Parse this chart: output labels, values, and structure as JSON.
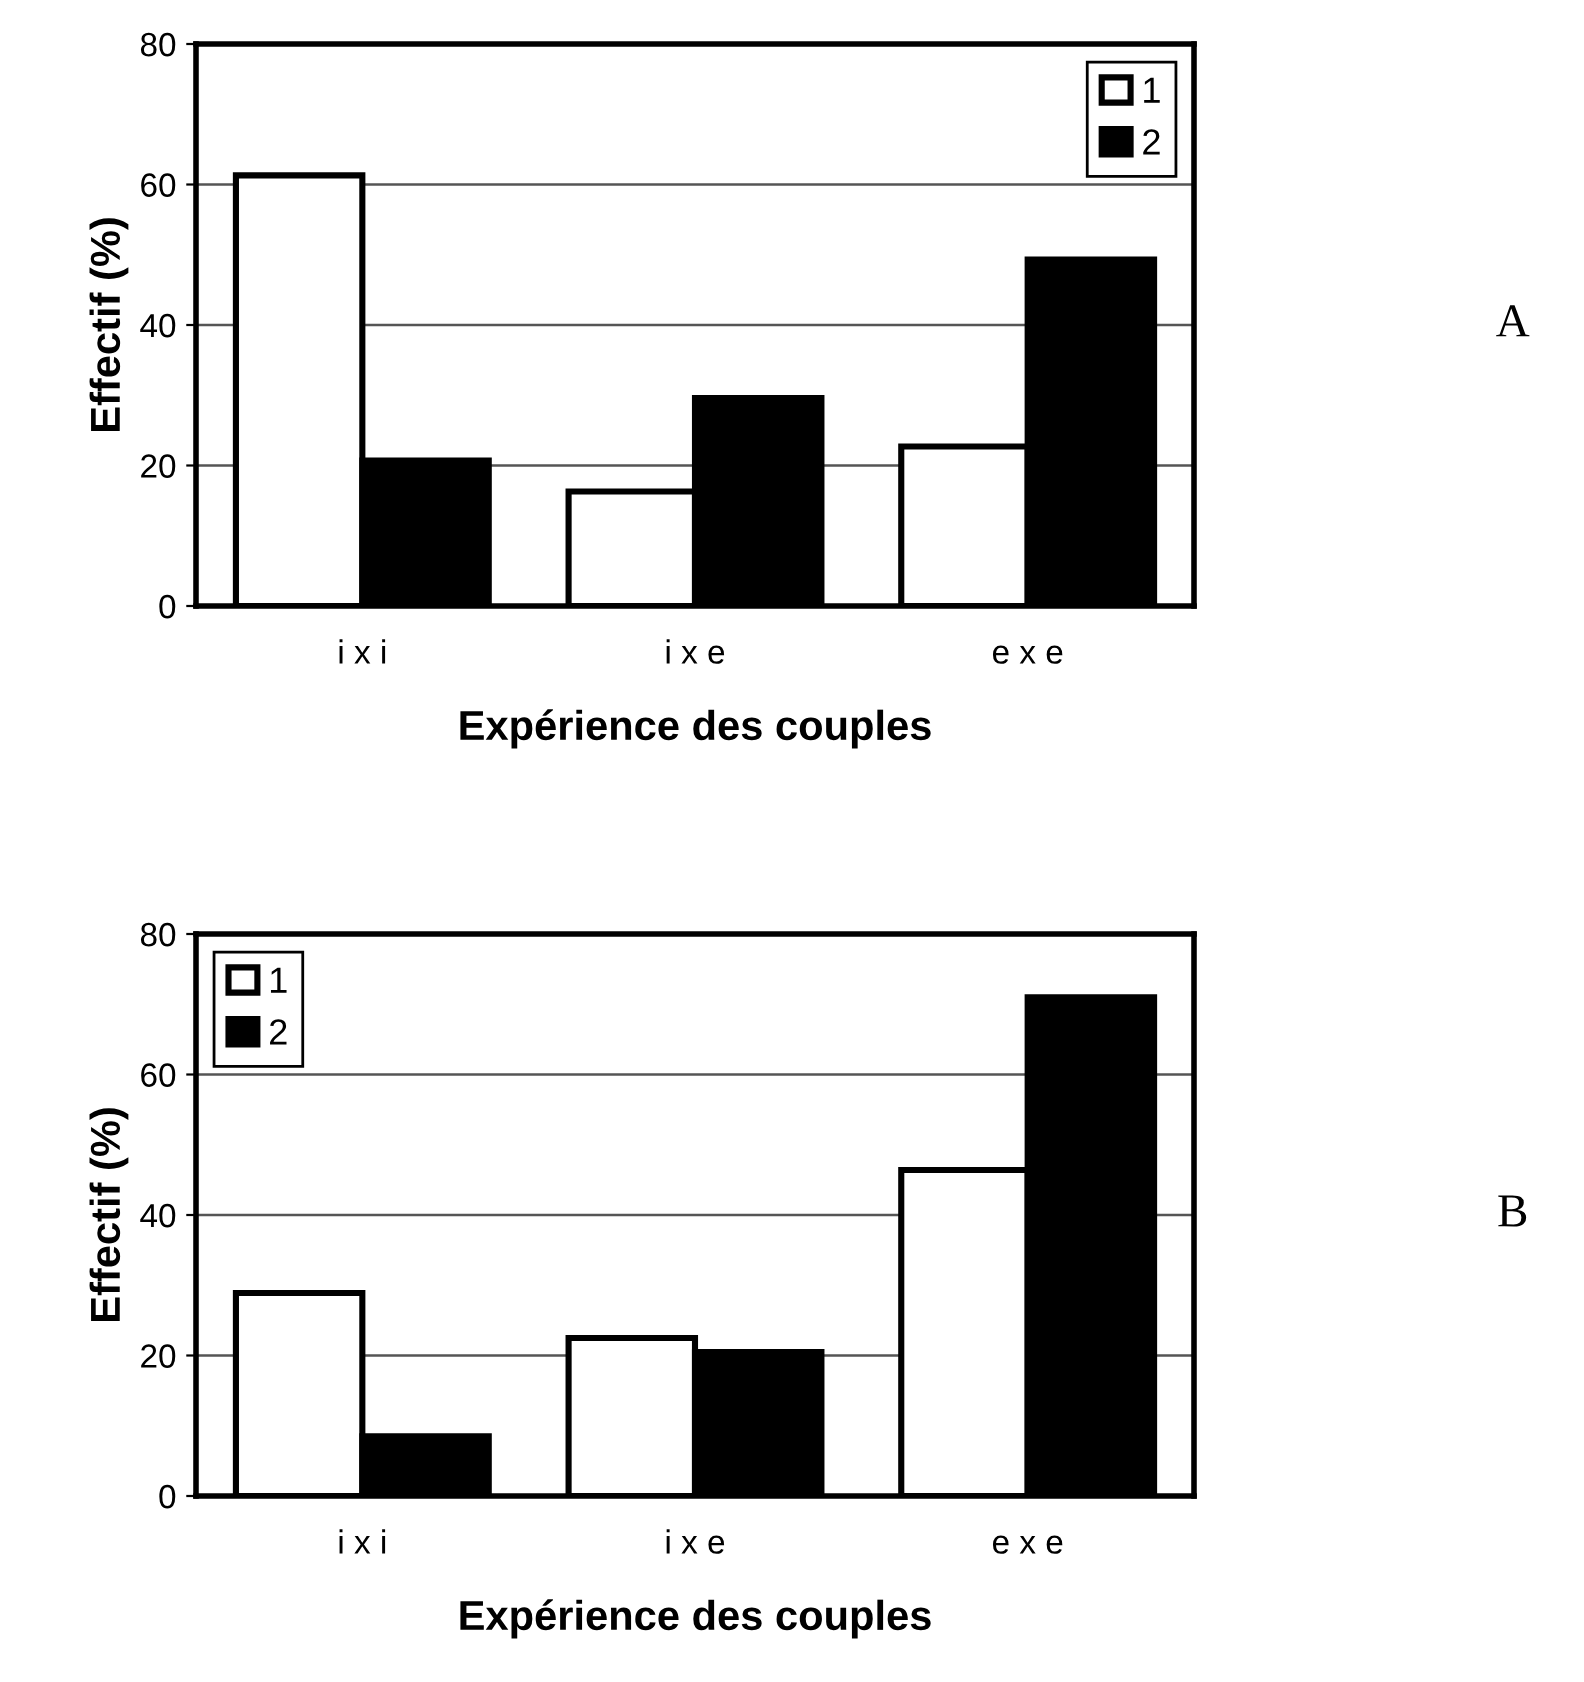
{
  "chart_data": [
    {
      "type": "bar",
      "categories": [
        "i x i",
        "i x e",
        "e x e"
      ],
      "xlabel": "Expérience des couples",
      "ylabel": "Effectif (%)",
      "ylim": [
        0,
        80
      ],
      "yticks": [
        0,
        20,
        40,
        60,
        80
      ],
      "grid": "y",
      "legend": "top right",
      "annotations": [
        "A"
      ],
      "series": [
        {
          "name": "1",
          "color": "#ffffff",
          "values": [
            61.3,
            16.3,
            22.7
          ]
        },
        {
          "name": "2",
          "color": "#000000",
          "values": [
            20.7,
            29.6,
            49.3
          ]
        }
      ]
    },
    {
      "type": "bar",
      "categories": [
        "i x i",
        "i x e",
        "e x e"
      ],
      "xlabel": "Expérience des couples",
      "ylabel": "Effectif (%)",
      "ylim": [
        0,
        80
      ],
      "yticks": [
        0,
        20,
        40,
        60,
        80
      ],
      "grid": "y",
      "legend": "top left",
      "annotations": [
        "B"
      ],
      "series": [
        {
          "name": "1",
          "color": "#ffffff",
          "values": [
            28.9,
            22.5,
            46.4
          ]
        },
        {
          "name": "2",
          "color": "#000000",
          "values": [
            8.5,
            20.5,
            71.0
          ]
        }
      ]
    }
  ]
}
